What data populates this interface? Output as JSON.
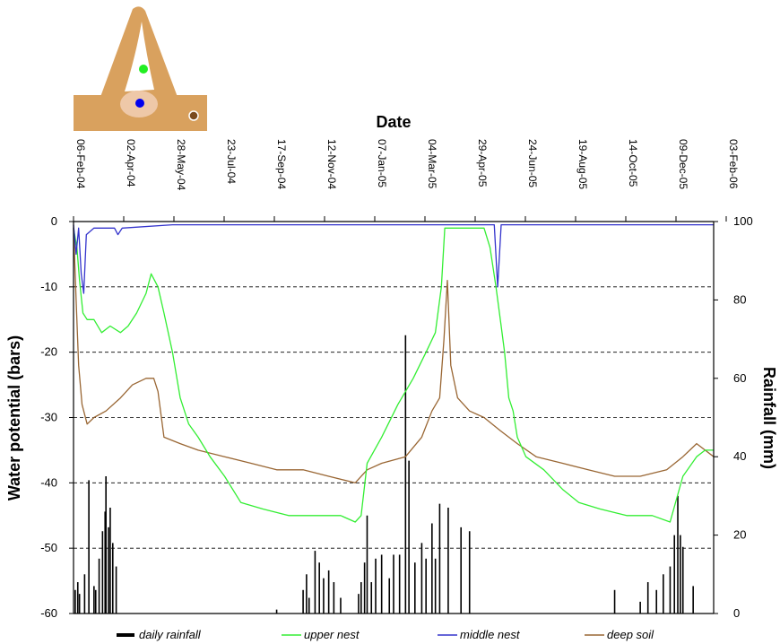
{
  "chart_data": {
    "type": "line",
    "title": "Date",
    "x_tick_labels": [
      "06-Feb-04",
      "02-Apr-04",
      "28-May-04",
      "23-Jul-04",
      "17-Sep-04",
      "12-Nov-04",
      "07-Jan-05",
      "04-Mar-05",
      "29-Apr-05",
      "24-Jun-05",
      "19-Aug-05",
      "14-Oct-05",
      "09-Dec-05",
      "03-Feb-06"
    ],
    "xlim": [
      "2004-02-06",
      "2006-02-25"
    ],
    "ylabel": "Water potential (bars)",
    "ylim": [
      -60,
      0
    ],
    "y_ticks": [
      0,
      -10,
      -20,
      -30,
      -40,
      -50,
      -60
    ],
    "y2label": "Rainfall (mm)",
    "y2lim": [
      0,
      100
    ],
    "y2_ticks": [
      100,
      80,
      60,
      40,
      20,
      0
    ],
    "gridlines": "dashed horizontal at -10,-20,-30,-40,-50",
    "legend_position": "bottom",
    "series": [
      {
        "name": "upper nest",
        "color": "#33ee33",
        "axis": "left",
        "points": [
          [
            "2004-02-06",
            -1
          ],
          [
            "2004-02-10",
            -4
          ],
          [
            "2004-02-13",
            -9
          ],
          [
            "2004-02-17",
            -14
          ],
          [
            "2004-02-22",
            -15
          ],
          [
            "2004-03-01",
            -15
          ],
          [
            "2004-03-10",
            -17
          ],
          [
            "2004-03-20",
            -16
          ],
          [
            "2004-04-01",
            -17
          ],
          [
            "2004-04-10",
            -16
          ],
          [
            "2004-04-20",
            -14
          ],
          [
            "2004-05-01",
            -11
          ],
          [
            "2004-05-07",
            -8
          ],
          [
            "2004-05-15",
            -10
          ],
          [
            "2004-05-22",
            -14
          ],
          [
            "2004-06-01",
            -20
          ],
          [
            "2004-06-10",
            -27
          ],
          [
            "2004-06-20",
            -31
          ],
          [
            "2004-07-01",
            -33
          ],
          [
            "2004-07-15",
            -36
          ],
          [
            "2004-08-01",
            -39
          ],
          [
            "2004-08-20",
            -43
          ],
          [
            "2004-09-15",
            -44
          ],
          [
            "2004-10-15",
            -45
          ],
          [
            "2004-11-15",
            -45
          ],
          [
            "2004-12-15",
            -45
          ],
          [
            "2005-01-01",
            -46
          ],
          [
            "2005-01-08",
            -45
          ],
          [
            "2005-01-15",
            -37
          ],
          [
            "2005-02-01",
            -33
          ],
          [
            "2005-02-20",
            -28
          ],
          [
            "2005-03-10",
            -24
          ],
          [
            "2005-03-25",
            -20
          ],
          [
            "2005-04-05",
            -17
          ],
          [
            "2005-04-12",
            -10
          ],
          [
            "2005-04-16",
            -1
          ],
          [
            "2005-05-01",
            -1
          ],
          [
            "2005-05-20",
            -1
          ],
          [
            "2005-06-01",
            -1
          ],
          [
            "2005-06-08",
            -4
          ],
          [
            "2005-06-15",
            -10
          ],
          [
            "2005-06-21",
            -16
          ],
          [
            "2005-06-25",
            -20
          ],
          [
            "2005-06-30",
            -27
          ],
          [
            "2005-07-05",
            -29
          ],
          [
            "2005-07-10",
            -33
          ],
          [
            "2005-07-20",
            -36
          ],
          [
            "2005-08-10",
            -38
          ],
          [
            "2005-09-01",
            -41
          ],
          [
            "2005-09-20",
            -43
          ],
          [
            "2005-10-15",
            -44
          ],
          [
            "2005-11-15",
            -45
          ],
          [
            "2005-12-15",
            -45
          ],
          [
            "2006-01-05",
            -46
          ],
          [
            "2006-01-20",
            -39
          ],
          [
            "2006-02-05",
            -36
          ],
          [
            "2006-02-15",
            -35
          ],
          [
            "2006-02-25",
            -35
          ]
        ]
      },
      {
        "name": "middle nest",
        "color": "#3333cc",
        "axis": "left",
        "points": [
          [
            "2004-02-06",
            -0.5
          ],
          [
            "2004-02-09",
            -5
          ],
          [
            "2004-02-12",
            -1
          ],
          [
            "2004-02-15",
            -8
          ],
          [
            "2004-02-18",
            -11
          ],
          [
            "2004-02-21",
            -2
          ],
          [
            "2004-03-01",
            -1
          ],
          [
            "2004-03-25",
            -1
          ],
          [
            "2004-03-29",
            -2
          ],
          [
            "2004-04-03",
            -1
          ],
          [
            "2004-06-01",
            -0.5
          ],
          [
            "2005-06-13",
            -0.5
          ],
          [
            "2005-06-17",
            -10
          ],
          [
            "2005-06-21",
            -0.5
          ],
          [
            "2006-02-25",
            -0.5
          ]
        ]
      },
      {
        "name": "deep soil",
        "color": "#996633",
        "axis": "left",
        "points": [
          [
            "2004-02-06",
            -1
          ],
          [
            "2004-02-09",
            -12
          ],
          [
            "2004-02-12",
            -22
          ],
          [
            "2004-02-16",
            -28
          ],
          [
            "2004-02-22",
            -31
          ],
          [
            "2004-03-01",
            -30
          ],
          [
            "2004-03-15",
            -29
          ],
          [
            "2004-04-01",
            -27
          ],
          [
            "2004-04-15",
            -25
          ],
          [
            "2004-05-01",
            -24
          ],
          [
            "2004-05-10",
            -24
          ],
          [
            "2004-05-15",
            -26
          ],
          [
            "2004-05-22",
            -33
          ],
          [
            "2004-06-10",
            -34
          ],
          [
            "2004-07-01",
            -35
          ],
          [
            "2004-08-01",
            -36
          ],
          [
            "2004-09-01",
            -37
          ],
          [
            "2004-10-01",
            -38
          ],
          [
            "2004-11-01",
            -38
          ],
          [
            "2004-12-01",
            -39
          ],
          [
            "2005-01-01",
            -40
          ],
          [
            "2005-01-15",
            -38
          ],
          [
            "2005-02-01",
            -37
          ],
          [
            "2005-03-01",
            -36
          ],
          [
            "2005-03-20",
            -33
          ],
          [
            "2005-04-01",
            -29
          ],
          [
            "2005-04-10",
            -27
          ],
          [
            "2005-04-15",
            -18
          ],
          [
            "2005-04-19",
            -9
          ],
          [
            "2005-04-23",
            -22
          ],
          [
            "2005-05-01",
            -27
          ],
          [
            "2005-05-15",
            -29
          ],
          [
            "2005-06-01",
            -30
          ],
          [
            "2005-06-20",
            -32
          ],
          [
            "2005-07-10",
            -34
          ],
          [
            "2005-08-01",
            -36
          ],
          [
            "2005-09-01",
            -37
          ],
          [
            "2005-10-01",
            -38
          ],
          [
            "2005-11-01",
            -39
          ],
          [
            "2005-12-01",
            -39
          ],
          [
            "2006-01-01",
            -38
          ],
          [
            "2006-01-20",
            -36
          ],
          [
            "2006-02-05",
            -34
          ],
          [
            "2006-02-25",
            -36
          ]
        ]
      },
      {
        "name": "daily rainfall",
        "color": "#000000",
        "axis": "right",
        "type": "bar",
        "points": [
          [
            "2004-02-08",
            6
          ],
          [
            "2004-02-11",
            8
          ],
          [
            "2004-02-13",
            5
          ],
          [
            "2004-02-19",
            10
          ],
          [
            "2004-02-24",
            34
          ],
          [
            "2004-03-01",
            7
          ],
          [
            "2004-03-03",
            6
          ],
          [
            "2004-03-07",
            14
          ],
          [
            "2004-03-11",
            21
          ],
          [
            "2004-03-14",
            26
          ],
          [
            "2004-03-15",
            35
          ],
          [
            "2004-03-18",
            22
          ],
          [
            "2004-03-20",
            27
          ],
          [
            "2004-03-23",
            18
          ],
          [
            "2004-03-27",
            12
          ],
          [
            "2004-10-01",
            1
          ],
          [
            "2004-11-01",
            6
          ],
          [
            "2004-11-05",
            10
          ],
          [
            "2004-11-08",
            4
          ],
          [
            "2004-11-15",
            16
          ],
          [
            "2004-11-20",
            13
          ],
          [
            "2004-11-25",
            9
          ],
          [
            "2004-12-01",
            11
          ],
          [
            "2004-12-07",
            8
          ],
          [
            "2004-12-15",
            4
          ],
          [
            "2005-01-05",
            5
          ],
          [
            "2005-01-08",
            8
          ],
          [
            "2005-01-12",
            13
          ],
          [
            "2005-01-15",
            25
          ],
          [
            "2005-01-20",
            8
          ],
          [
            "2005-01-25",
            14
          ],
          [
            "2005-02-01",
            15
          ],
          [
            "2005-02-10",
            9
          ],
          [
            "2005-02-15",
            15
          ],
          [
            "2005-02-22",
            15
          ],
          [
            "2005-03-01",
            71
          ],
          [
            "2005-03-05",
            39
          ],
          [
            "2005-03-12",
            13
          ],
          [
            "2005-03-20",
            18
          ],
          [
            "2005-03-25",
            14
          ],
          [
            "2005-04-01",
            23
          ],
          [
            "2005-04-05",
            14
          ],
          [
            "2005-04-10",
            28
          ],
          [
            "2005-04-20",
            27
          ],
          [
            "2005-05-05",
            22
          ],
          [
            "2005-05-15",
            21
          ],
          [
            "2005-11-01",
            6
          ],
          [
            "2005-12-01",
            3
          ],
          [
            "2005-12-10",
            8
          ],
          [
            "2005-12-20",
            6
          ],
          [
            "2005-12-28",
            10
          ],
          [
            "2006-01-05",
            12
          ],
          [
            "2006-01-10",
            20
          ],
          [
            "2006-01-14",
            30
          ],
          [
            "2006-01-17",
            20
          ],
          [
            "2006-01-20",
            17
          ],
          [
            "2006-02-01",
            7
          ]
        ]
      }
    ],
    "legend": [
      "daily rainfall",
      "upper nest",
      "middle nest",
      "deep soil"
    ],
    "inset_dot_colors": [
      "#22ee22",
      "#0000ee",
      "#7a4a1e"
    ]
  }
}
